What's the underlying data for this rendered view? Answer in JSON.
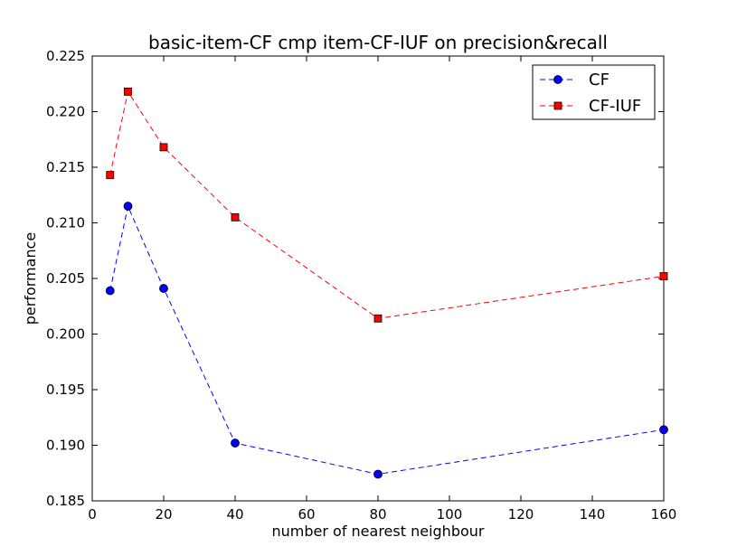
{
  "chart_data": {
    "type": "line",
    "title": "basic-item-CF cmp item-CF-IUF on precision&recall",
    "xlabel": "number of nearest neighbour",
    "ylabel": "performance",
    "xlim": [
      0,
      160
    ],
    "ylim": [
      0.185,
      0.225
    ],
    "xticks": [
      0,
      20,
      40,
      60,
      80,
      100,
      120,
      140,
      160
    ],
    "xtick_labels": [
      "0",
      "20",
      "40",
      "60",
      "80",
      "100",
      "120",
      "140",
      "160"
    ],
    "yticks": [
      0.185,
      0.19,
      0.195,
      0.2,
      0.205,
      0.21,
      0.215,
      0.22,
      0.225
    ],
    "ytick_labels": [
      "0.185",
      "0.190",
      "0.195",
      "0.200",
      "0.205",
      "0.210",
      "0.215",
      "0.220",
      "0.225"
    ],
    "grid": false,
    "legend_position": "top-right",
    "x": [
      5,
      10,
      20,
      40,
      80,
      160
    ],
    "series": [
      {
        "name": "CF",
        "values": [
          0.2039,
          0.2115,
          0.2041,
          0.1902,
          0.1874,
          0.1914
        ],
        "color": "#0000ff",
        "marker": "circle",
        "linestyle": "dashed"
      },
      {
        "name": "CF-IUF",
        "values": [
          0.2143,
          0.2218,
          0.2168,
          0.2105,
          0.2014,
          0.2052
        ],
        "color": "#ff0000",
        "marker": "square",
        "linestyle": "dashed"
      }
    ]
  }
}
